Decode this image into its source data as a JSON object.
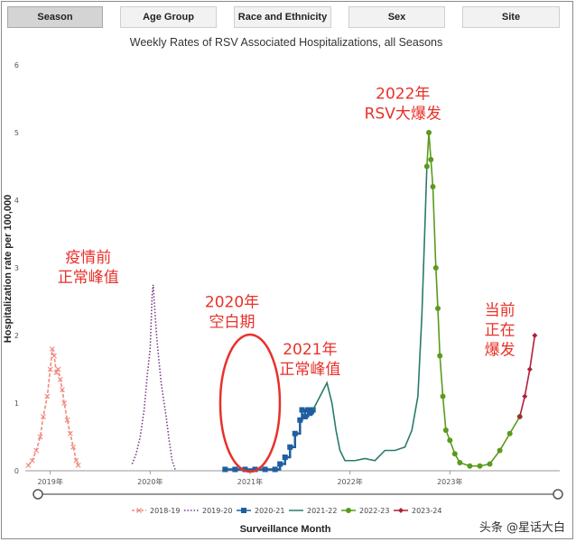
{
  "tabs": [
    {
      "label": "Season",
      "active": true
    },
    {
      "label": "Age Group",
      "active": false
    },
    {
      "label": "Race and Ethnicity",
      "active": false
    },
    {
      "label": "Sex",
      "active": false
    },
    {
      "label": "Site",
      "active": false
    }
  ],
  "watermark": "头条 @星话大白",
  "chart_data": {
    "type": "line",
    "title": "Weekly Rates of RSV Associated Hospitalizations, all Seasons",
    "ylabel": "Hospitalization rate per 100,000",
    "xlabel": "Surveillance Month",
    "ylim": [
      0,
      6
    ],
    "yticks": [
      "0",
      "1",
      "2",
      "3",
      "4",
      "5",
      "6"
    ],
    "xticks": [
      {
        "label": "2019年",
        "t": 2019.0
      },
      {
        "label": "2020年",
        "t": 2020.0
      },
      {
        "label": "2021年",
        "t": 2021.0
      },
      {
        "label": "2022年",
        "t": 2022.0
      },
      {
        "label": "2023年",
        "t": 2023.0
      }
    ],
    "xlim": [
      2018.75,
      2024.1
    ],
    "legend_position": "bottom",
    "series": [
      {
        "name": "2018-19",
        "color": "#f08a80",
        "style": "dash-x",
        "points": [
          [
            2018.78,
            0.08
          ],
          [
            2018.82,
            0.15
          ],
          [
            2018.86,
            0.3
          ],
          [
            2018.9,
            0.5
          ],
          [
            2018.93,
            0.8
          ],
          [
            2018.97,
            1.1
          ],
          [
            2019.0,
            1.5
          ],
          [
            2019.02,
            1.8
          ],
          [
            2019.04,
            1.7
          ],
          [
            2019.06,
            1.45
          ],
          [
            2019.08,
            1.5
          ],
          [
            2019.1,
            1.35
          ],
          [
            2019.12,
            1.2
          ],
          [
            2019.14,
            1.0
          ],
          [
            2019.17,
            0.75
          ],
          [
            2019.2,
            0.55
          ],
          [
            2019.23,
            0.35
          ],
          [
            2019.26,
            0.15
          ],
          [
            2019.28,
            0.08
          ]
        ]
      },
      {
        "name": "2019-20",
        "color": "#7a3a8a",
        "style": "dotted",
        "points": [
          [
            2019.82,
            0.1
          ],
          [
            2019.86,
            0.25
          ],
          [
            2019.9,
            0.5
          ],
          [
            2019.94,
            0.9
          ],
          [
            2019.97,
            1.4
          ],
          [
            2020.0,
            1.8
          ],
          [
            2020.02,
            2.6
          ],
          [
            2020.03,
            2.75
          ],
          [
            2020.05,
            2.3
          ],
          [
            2020.07,
            1.9
          ],
          [
            2020.09,
            1.6
          ],
          [
            2020.11,
            1.3
          ],
          [
            2020.13,
            1.1
          ],
          [
            2020.16,
            0.8
          ],
          [
            2020.19,
            0.45
          ],
          [
            2020.22,
            0.15
          ],
          [
            2020.25,
            0.02
          ]
        ]
      },
      {
        "name": "2020-21",
        "color": "#1f5fa0",
        "style": "square",
        "points": [
          [
            2020.75,
            0.02
          ],
          [
            2020.85,
            0.02
          ],
          [
            2020.95,
            0.02
          ],
          [
            2021.05,
            0.02
          ],
          [
            2021.15,
            0.02
          ],
          [
            2021.25,
            0.02
          ],
          [
            2021.3,
            0.1
          ],
          [
            2021.35,
            0.2
          ],
          [
            2021.4,
            0.35
          ],
          [
            2021.45,
            0.55
          ],
          [
            2021.5,
            0.75
          ],
          [
            2021.52,
            0.9
          ],
          [
            2021.55,
            0.8
          ],
          [
            2021.58,
            0.9
          ],
          [
            2021.6,
            0.85
          ],
          [
            2021.63,
            0.9
          ]
        ]
      },
      {
        "name": "2021-22",
        "color": "#2a7a6a",
        "style": "solid",
        "points": [
          [
            2021.63,
            0.9
          ],
          [
            2021.7,
            1.1
          ],
          [
            2021.77,
            1.3
          ],
          [
            2021.82,
            1.0
          ],
          [
            2021.86,
            0.6
          ],
          [
            2021.9,
            0.3
          ],
          [
            2021.95,
            0.15
          ],
          [
            2022.05,
            0.15
          ],
          [
            2022.15,
            0.18
          ],
          [
            2022.25,
            0.15
          ],
          [
            2022.35,
            0.3
          ],
          [
            2022.45,
            0.3
          ],
          [
            2022.55,
            0.35
          ],
          [
            2022.62,
            0.6
          ],
          [
            2022.68,
            1.1
          ],
          [
            2022.72,
            2.3
          ],
          [
            2022.75,
            3.6
          ],
          [
            2022.77,
            4.5
          ]
        ]
      },
      {
        "name": "2022-23",
        "color": "#5a9a1e",
        "style": "dot",
        "points": [
          [
            2022.77,
            4.5
          ],
          [
            2022.79,
            5.0
          ],
          [
            2022.81,
            4.6
          ],
          [
            2022.83,
            4.2
          ],
          [
            2022.86,
            3.0
          ],
          [
            2022.88,
            2.4
          ],
          [
            2022.9,
            1.7
          ],
          [
            2022.93,
            1.1
          ],
          [
            2022.96,
            0.6
          ],
          [
            2023.0,
            0.45
          ],
          [
            2023.05,
            0.25
          ],
          [
            2023.1,
            0.12
          ],
          [
            2023.2,
            0.07
          ],
          [
            2023.3,
            0.07
          ],
          [
            2023.4,
            0.1
          ],
          [
            2023.5,
            0.3
          ],
          [
            2023.6,
            0.55
          ],
          [
            2023.7,
            0.8
          ]
        ]
      },
      {
        "name": "2023-24",
        "color": "#b0203a",
        "style": "diamond",
        "points": [
          [
            2023.7,
            0.8
          ],
          [
            2023.75,
            1.1
          ],
          [
            2023.8,
            1.5
          ],
          [
            2023.85,
            2.0
          ]
        ]
      }
    ]
  },
  "annotations": [
    {
      "text_lines": [
        "疫情前",
        "正常峰值"
      ],
      "t": 2019.38,
      "y": 3.08
    },
    {
      "text_lines": [
        "2020年",
        "空白期"
      ],
      "t": 2020.82,
      "y": 2.42
    },
    {
      "text_lines": [
        "2021年",
        "正常峰值"
      ],
      "t": 2021.6,
      "y": 1.72
    },
    {
      "text_lines": [
        "2022年",
        "RSV大爆发"
      ],
      "t": 2022.53,
      "y": 5.5
    },
    {
      "text_lines": [
        "当前",
        "正在",
        "爆发"
      ],
      "t": 2023.5,
      "y": 2.3
    }
  ],
  "circle_highlight": {
    "t": 2021.0,
    "y": 1.0
  }
}
